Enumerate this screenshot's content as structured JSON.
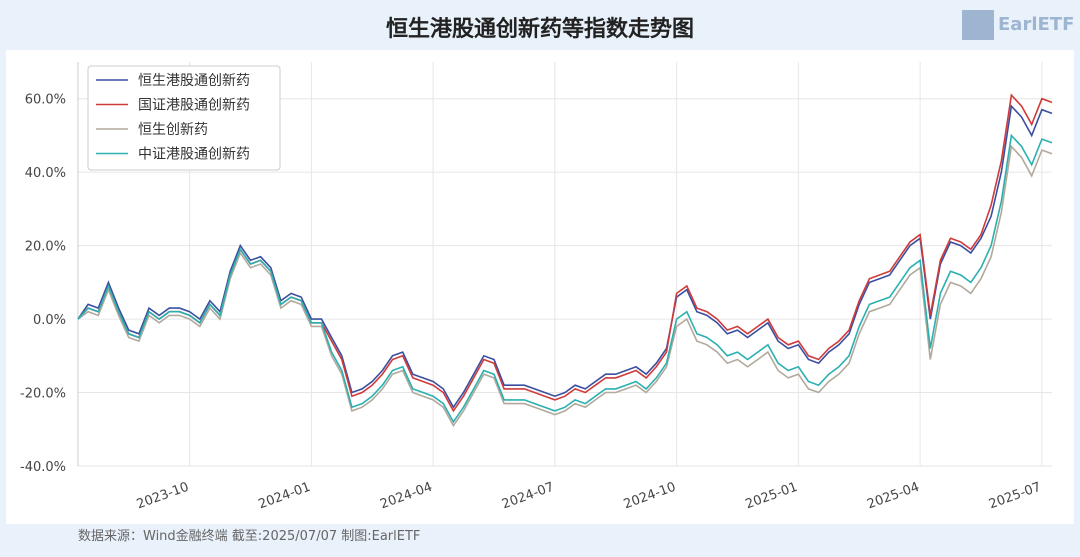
{
  "brand": "EarlETF",
  "footer": "数据来源：Wind金融终端 截至:2025/07/07 制图:EarlETF",
  "chart_data": {
    "type": "line",
    "title": "恒生港股通创新药等指数走势图",
    "categories": [
      null,
      null,
      null,
      null,
      null,
      null,
      null,
      null,
      null,
      null,
      null,
      "2023-10",
      null,
      null,
      null,
      null,
      null,
      null,
      null,
      null,
      null,
      null,
      null,
      "2024-01",
      null,
      null,
      null,
      null,
      null,
      null,
      null,
      null,
      null,
      null,
      null,
      "2024-04",
      null,
      null,
      null,
      null,
      null,
      null,
      null,
      null,
      null,
      null,
      null,
      "2024-07",
      null,
      null,
      null,
      null,
      null,
      null,
      null,
      null,
      null,
      null,
      null,
      "2024-10",
      null,
      null,
      null,
      null,
      null,
      null,
      null,
      null,
      null,
      null,
      null,
      "2025-01",
      null,
      null,
      null,
      null,
      null,
      null,
      null,
      null,
      null,
      null,
      null,
      "2025-04",
      null,
      null,
      null,
      null,
      null,
      null,
      null,
      null,
      null,
      null,
      null,
      "2025-07",
      null
    ],
    "series": [
      {
        "name": "恒生港股通创新药",
        "color": "#3a4fa0",
        "values": [
          0,
          4,
          3,
          10,
          3,
          -3,
          -4,
          3,
          1,
          3,
          3,
          2,
          0,
          5,
          2,
          13,
          20,
          16,
          17,
          14,
          5,
          7,
          6,
          0,
          0,
          -5,
          -10,
          -20,
          -19,
          -17,
          -14,
          -10,
          -9,
          -15,
          -16,
          -17,
          -19,
          -24,
          -20,
          -15,
          -10,
          -11,
          -18,
          -18,
          -18,
          -19,
          -20,
          -21,
          -20,
          -18,
          -19,
          -17,
          -15,
          -15,
          -14,
          -13,
          -15,
          -12,
          -8,
          6,
          8,
          2,
          1,
          -1,
          -4,
          -3,
          -5,
          -3,
          -1,
          -6,
          -8,
          -7,
          -11,
          -12,
          -9,
          -7,
          -4,
          4,
          10,
          11,
          12,
          16,
          20,
          22,
          0,
          15,
          21,
          20,
          18,
          22,
          28,
          40,
          58,
          55,
          50,
          57,
          56
        ]
      },
      {
        "name": "国证港股通创新药",
        "color": "#d03a3a",
        "values": [
          0,
          3,
          2,
          9,
          2,
          -4,
          -5,
          2,
          0,
          2,
          2,
          1,
          -1,
          4,
          1,
          12,
          19,
          15,
          16,
          13,
          4,
          6,
          5,
          -1,
          -1,
          -6,
          -11,
          -21,
          -20,
          -18,
          -15,
          -11,
          -10,
          -16,
          -17,
          -18,
          -20,
          -25,
          -21,
          -16,
          -11,
          -12,
          -19,
          -19,
          -19,
          -20,
          -21,
          -22,
          -21,
          -19,
          -20,
          -18,
          -16,
          -16,
          -15,
          -14,
          -16,
          -13,
          -9,
          7,
          9,
          3,
          2,
          0,
          -3,
          -2,
          -4,
          -2,
          0,
          -5,
          -7,
          -6,
          -10,
          -11,
          -8,
          -6,
          -3,
          5,
          11,
          12,
          13,
          17,
          21,
          23,
          1,
          16,
          22,
          21,
          19,
          23,
          31,
          43,
          61,
          58,
          53,
          60,
          59
        ]
      },
      {
        "name": "恒生创新药",
        "color": "#b2a99c",
        "values": [
          0,
          2,
          1,
          8,
          1,
          -5,
          -6,
          1,
          -1,
          1,
          1,
          0,
          -2,
          3,
          0,
          11,
          18,
          14,
          15,
          12,
          3,
          5,
          4,
          -2,
          -2,
          -10,
          -15,
          -25,
          -24,
          -22,
          -19,
          -15,
          -14,
          -20,
          -21,
          -22,
          -24,
          -29,
          -25,
          -20,
          -15,
          -16,
          -23,
          -23,
          -23,
          -24,
          -25,
          -26,
          -25,
          -23,
          -24,
          -22,
          -20,
          -20,
          -19,
          -18,
          -20,
          -17,
          -13,
          -2,
          0,
          -6,
          -7,
          -9,
          -12,
          -11,
          -13,
          -11,
          -9,
          -14,
          -16,
          -15,
          -19,
          -20,
          -17,
          -15,
          -12,
          -4,
          2,
          3,
          4,
          8,
          12,
          14,
          -11,
          4,
          10,
          9,
          7,
          11,
          17,
          29,
          47,
          44,
          39,
          46,
          45
        ]
      },
      {
        "name": "中证港股通创新药",
        "color": "#2ab0b0",
        "values": [
          0,
          3,
          2,
          9,
          2,
          -4,
          -5,
          2,
          0,
          2,
          2,
          1,
          -1,
          4,
          1,
          12,
          19,
          15,
          16,
          13,
          4,
          6,
          5,
          -1,
          -1,
          -9,
          -14,
          -24,
          -23,
          -21,
          -18,
          -14,
          -13,
          -19,
          -20,
          -21,
          -23,
          -28,
          -24,
          -19,
          -14,
          -15,
          -22,
          -22,
          -22,
          -23,
          -24,
          -25,
          -24,
          -22,
          -23,
          -21,
          -19,
          -19,
          -18,
          -17,
          -19,
          -16,
          -12,
          0,
          2,
          -4,
          -5,
          -7,
          -10,
          -9,
          -11,
          -9,
          -7,
          -12,
          -14,
          -13,
          -17,
          -18,
          -15,
          -13,
          -10,
          -2,
          4,
          5,
          6,
          10,
          14,
          16,
          -8,
          7,
          13,
          12,
          10,
          14,
          20,
          32,
          50,
          47,
          42,
          49,
          48
        ]
      }
    ],
    "ylim": [
      -40,
      70
    ],
    "yticks": [
      {
        "value": -40,
        "label": "-40.0%"
      },
      {
        "value": -20,
        "label": "-20.0%"
      },
      {
        "value": 0,
        "label": "0.0%"
      },
      {
        "value": 20,
        "label": "20.0%"
      },
      {
        "value": 40,
        "label": "40.0%"
      },
      {
        "value": 60,
        "label": "60.0%"
      }
    ],
    "grid": true,
    "legend": "upper left"
  }
}
